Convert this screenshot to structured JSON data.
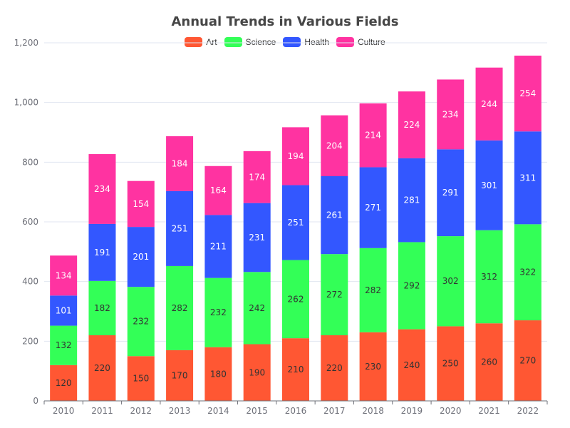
{
  "chart_data": {
    "type": "bar",
    "stacked": true,
    "title": "Annual Trends in Various Fields",
    "xlabel": "",
    "ylabel": "",
    "ylim": [
      0,
      1200
    ],
    "yticks": [
      0,
      200,
      400,
      600,
      800,
      1000,
      1200
    ],
    "ytick_labels": [
      "0",
      "200",
      "400",
      "600",
      "800",
      "1,000",
      "1,200"
    ],
    "grid": true,
    "legend_position": "top-center",
    "categories": [
      "2010",
      "2011",
      "2012",
      "2013",
      "2014",
      "2015",
      "2016",
      "2017",
      "2018",
      "2019",
      "2020",
      "2021",
      "2022"
    ],
    "series": [
      {
        "name": "Art",
        "color": "#ff5733",
        "label_color": "#333333",
        "values": [
          120,
          220,
          150,
          170,
          180,
          190,
          210,
          220,
          230,
          240,
          250,
          260,
          270
        ]
      },
      {
        "name": "Science",
        "color": "#33ff57",
        "label_color": "#333333",
        "values": [
          132,
          182,
          232,
          282,
          232,
          242,
          262,
          272,
          282,
          292,
          302,
          312,
          322
        ]
      },
      {
        "name": "Health",
        "color": "#3357ff",
        "label_color": "#ffffff",
        "values": [
          101,
          191,
          201,
          251,
          211,
          231,
          251,
          261,
          271,
          281,
          291,
          301,
          311
        ]
      },
      {
        "name": "Culture",
        "color": "#ff33a1",
        "label_color": "#ffffff",
        "values": [
          134,
          234,
          154,
          184,
          164,
          174,
          194,
          204,
          214,
          224,
          234,
          244,
          254
        ]
      }
    ]
  }
}
